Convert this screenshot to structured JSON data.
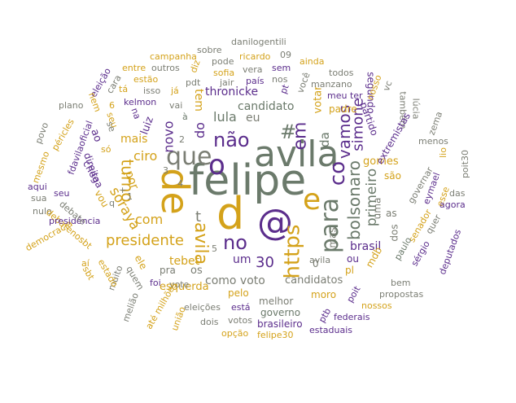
{
  "palette": {
    "grey_green": "#6b7a6b",
    "mustard": "#d4a21a",
    "purple": "#5b2d8c",
    "grey": "#7b7e74",
    "background": "#ffffff"
  },
  "words": {
    "felipe": "felipe",
    "de": "de",
    "avila": "avila",
    "d": "d",
    "at": "@",
    "e": "e",
    "o": "o",
    "que": "que",
    "para": "para",
    "https": "https",
    "co": "co",
    "nao": "não",
    "no": "no",
    "presidente": "presidente",
    "turno": "turno",
    "bolsonaro": "bolsonaro",
    "avila2": "avila",
    "em": "em",
    "vamos": "vamos",
    "simone": "simone",
    "primeiro": "primeiro",
    "brasil": "brasil",
    "soraya": "soraya",
    "com": "com",
    "ciro": "ciro",
    "mais": "mais",
    "novo": "novo",
    "lula": "lula",
    "candidato": "candidato",
    "thronicke": "thronicke",
    "tebet": "tebet",
    "esquerda": "esquerda",
    "como_voto": "como voto",
    "candidatos": "candidatos",
    "n30": "30",
    "um": "um",
    "do": "do",
    "tem": "tem",
    "eu": "eu",
    "hash": "#",
    "t": "t",
    "da": "da",
    "votar": "votar",
    "padre": "padre",
    "partido": "partido",
    "segundo": "segundo",
    "gomes": "gomes",
    "sao": "são",
    "pl": "pl",
    "mdb": "mdb",
    "ou": "ou",
    "dos": "dos",
    "uma": "uma",
    "mas": "mas",
    "n0": "0",
    "as": "as",
    "senador": "senador",
    "paulo": "paulo",
    "sergio": "sérgio",
    "deputados": "deputados",
    "governar": "governar",
    "eymael": "eymael",
    "esse": "esse",
    "quer": "quer",
    "bem": "bem",
    "agora": "agora",
    "das": "das",
    "poit30": "poit30",
    "lio": "lio",
    "menos": "menos",
    "zema": "zema",
    "lucia": "lúcia",
    "tambem": "também",
    "extremistas": "extremistas",
    "vc": "vc",
    "nosso": "nosso",
    "meu": "meu",
    "ter": "ter",
    "todos": "todos",
    "manzano": "manzano",
    "voce": "você",
    "ainda": "ainda",
    "sem": "sem",
    "nos": "nos",
    "n09": "09",
    "pais": "país",
    "vera": "vera",
    "ricardo": "ricardo",
    "pode": "pode",
    "jair": "jair",
    "danilogentili": "danilogentili",
    "sobre": "sobre",
    "campanha": "campanha",
    "sofia": "sofia",
    "pdt": "pdt",
    "ja": "já",
    "diz": "diz",
    "entre": "entre",
    "outros": "outros",
    "estao": "estão",
    "isso": "isso",
    "vai": "vai",
    "kelmon": "kelmon",
    "a_grave": "à",
    "eleicao": "eleição",
    "cara": "cara",
    "na": "na",
    "nem": "nem",
    "seu": "seu",
    "n6": "6",
    "ta": "tá",
    "plano": "plano",
    "povo": "povo",
    "pericles": "péricles",
    "fdavilaoficial": "fdavilaoficial",
    "mesmo": "mesmo",
    "aqui": "aqui",
    "sua": "sua",
    "nulo": "nulo",
    "democracia": "democracia",
    "debatenosbt": "debatenosbt",
    "presidencia": "presidência",
    "debate": "debate",
    "sbt": "sbt",
    "ai": "aí",
    "ao": "ao",
    "so": "só",
    "se": "se",
    "chega": "chega",
    "vou": "vou",
    "direita": "direita",
    "q": "q",
    "por": "por",
    "luiz": "luiz",
    "ele": "ele",
    "muito": "muito",
    "estado": "estado",
    "quem": "quem",
    "foi": "foi",
    "vote": "vote",
    "pra": "pra",
    "os": "os",
    "ate": "até",
    "milhoes": "milhões",
    "uniao": "união",
    "meliao": "melião",
    "eleicoes": "eleições",
    "dois": "dois",
    "esta": "está",
    "votos": "votos",
    "opcao": "opção",
    "pelo": "pelo",
    "melhor": "melhor",
    "governo": "governo",
    "brasileiro": "brasileiro",
    "felipe30": "felipe30",
    "moro": "moro",
    "ptb": "ptb",
    "poit": "poit",
    "nossos": "nossos",
    "federais": "federais",
    "estaduais": "estaduais",
    "propostas": "propostas",
    "pt": "pt",
    "n2": "2",
    "n3": "3",
    "n4": "4",
    "n5": "5",
    "n1": "1",
    "plus": "+"
  }
}
